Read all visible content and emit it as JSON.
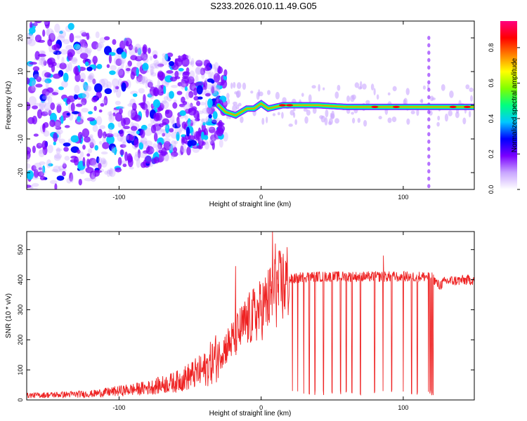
{
  "figure_title": "S233.2026.010.11.49.G05",
  "chart_data": [
    {
      "type": "heatmap",
      "title": "S233.2026.010.11.49.G05",
      "xlabel": "Height of straight line (km)",
      "ylabel": "Frequency (Hz)",
      "xlim": [
        -165,
        150
      ],
      "ylim": [
        -25,
        25
      ],
      "x_ticks": [
        -100,
        0,
        100
      ],
      "x_ticklabels": [
        "-100",
        "0",
        "100"
      ],
      "y_ticks": [
        -20,
        -10,
        0,
        10,
        20
      ],
      "y_ticklabels": [
        "-20",
        "-10",
        "0",
        "10",
        "20"
      ],
      "colorbar": {
        "label": "Normalized spectral amplitude",
        "range": [
          0,
          0.95
        ],
        "ticks": [
          0.0,
          0.2,
          0.4,
          0.6,
          0.8
        ],
        "ticklabels": [
          "0.0",
          "0.2",
          "0.4",
          "0.6",
          "0.8"
        ],
        "colors": [
          "#ffffff",
          "#c9a6ff",
          "#7a00ff",
          "#0000ff",
          "#00c8ff",
          "#00ff80",
          "#80ff00",
          "#ffff00",
          "#ff8000",
          "#ff0000",
          "#ff0080"
        ]
      },
      "ridge": {
        "description_points_x": [
          -30,
          -25,
          -18,
          -10,
          -5,
          0,
          5,
          15,
          25,
          40,
          60,
          80,
          100,
          120,
          150
        ],
        "description_points_freq": [
          0,
          -2,
          -3,
          -1,
          -1,
          0.5,
          -1,
          0,
          0,
          0,
          -0.5,
          -0.5,
          -0.5,
          -0.5,
          -0.5
        ]
      },
      "line_color": "#7a00ff"
    },
    {
      "type": "line",
      "title": "",
      "xlabel": "Height of straight line (km)",
      "ylabel": "SNR (10 * v/v)",
      "xlim": [
        -165,
        150
      ],
      "ylim": [
        0,
        560
      ],
      "x_ticks": [
        -100,
        0,
        100
      ],
      "x_ticklabels": [
        "-100",
        "0",
        "100"
      ],
      "y_ticks": [
        0,
        100,
        200,
        300,
        400,
        500
      ],
      "y_ticklabels": [
        "0",
        "100",
        "200",
        "300",
        "400",
        "500"
      ],
      "series": [
        {
          "name": "SNR",
          "color": "#ee2222",
          "trend_x": [
            -165,
            -120,
            -80,
            -60,
            -40,
            -30,
            -20,
            -10,
            0,
            10,
            20,
            30,
            50,
            80,
            100,
            120,
            125,
            130,
            150
          ],
          "trend_y": [
            15,
            20,
            40,
            60,
            100,
            150,
            200,
            260,
            300,
            360,
            400,
            410,
            410,
            410,
            410,
            410,
            380,
            395,
            400
          ],
          "dropouts_x": [
            22,
            26,
            30,
            34,
            38,
            44,
            50,
            56,
            60,
            64,
            70,
            76,
            80,
            86,
            92,
            97,
            100,
            106,
            110,
            118,
            119,
            120,
            121
          ],
          "spikes_x": [
            -18,
            8,
            10,
            86
          ],
          "spikes_y": [
            445,
            560,
            520,
            480
          ]
        }
      ]
    }
  ]
}
